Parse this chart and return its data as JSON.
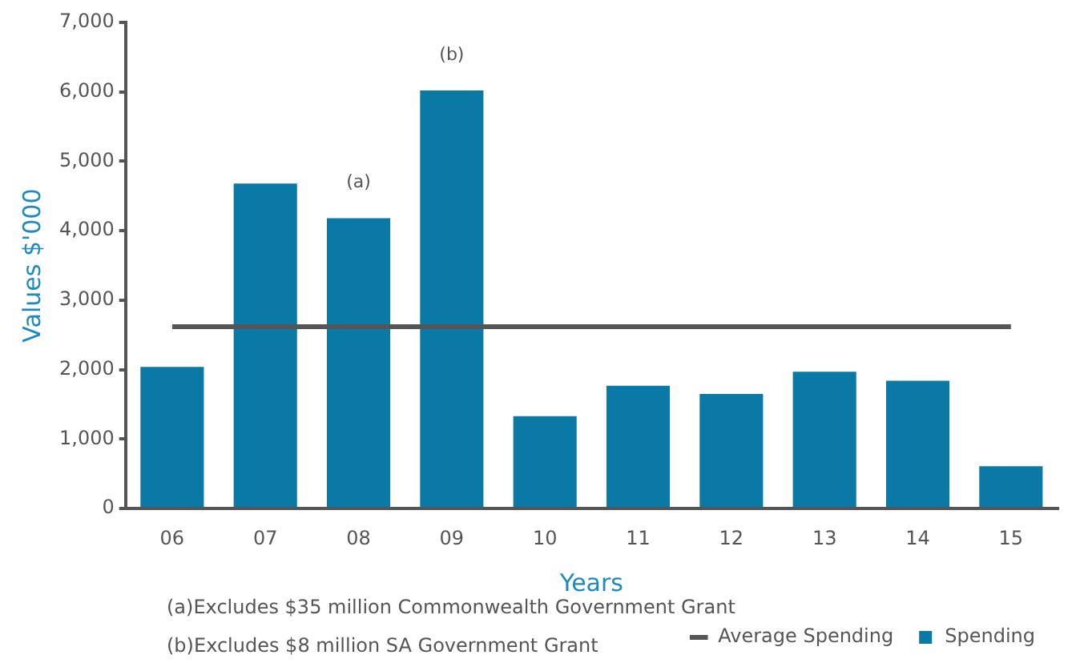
{
  "chart_data": {
    "type": "bar",
    "xlabel": "Years",
    "ylabel": "Values $'000",
    "categories": [
      "06",
      "07",
      "08",
      "09",
      "10",
      "11",
      "12",
      "13",
      "14",
      "15"
    ],
    "series": [
      {
        "name": "Spending",
        "color": "#0b79a6",
        "values": [
          2040,
          4680,
          4180,
          6020,
          1330,
          1770,
          1650,
          1970,
          1840,
          610
        ]
      },
      {
        "name": "Average Spending",
        "type": "line",
        "color": "#555555",
        "values": [
          2620,
          2620,
          2620,
          2620,
          2620,
          2620,
          2620,
          2620,
          2620,
          2620
        ],
        "marker": "none"
      }
    ],
    "ylim": [
      0,
      7000
    ],
    "yticks": [
      0,
      {
        "value": 1000,
        "label": "1,000"
      },
      {
        "value": 2000,
        "label": "2,000"
      },
      {
        "value": 3000,
        "label": "3,000"
      },
      {
        "value": 4000,
        "label": "4,000"
      },
      {
        "value": 5000,
        "label": "5,000"
      },
      {
        "value": 6000,
        "label": "6,000"
      },
      {
        "value": 7000,
        "label": "7,000"
      }
    ],
    "grid": false,
    "legend": "bottom right",
    "annotations": [
      {
        "text": "(a)",
        "x": "08",
        "y": 4180
      },
      {
        "text": "(b)",
        "x": "09",
        "y": 6020
      },
      "(a)Excludes $35 million Commonwealth Government Grant",
      "(b)Excludes $8 million SA Government Grant"
    ]
  }
}
